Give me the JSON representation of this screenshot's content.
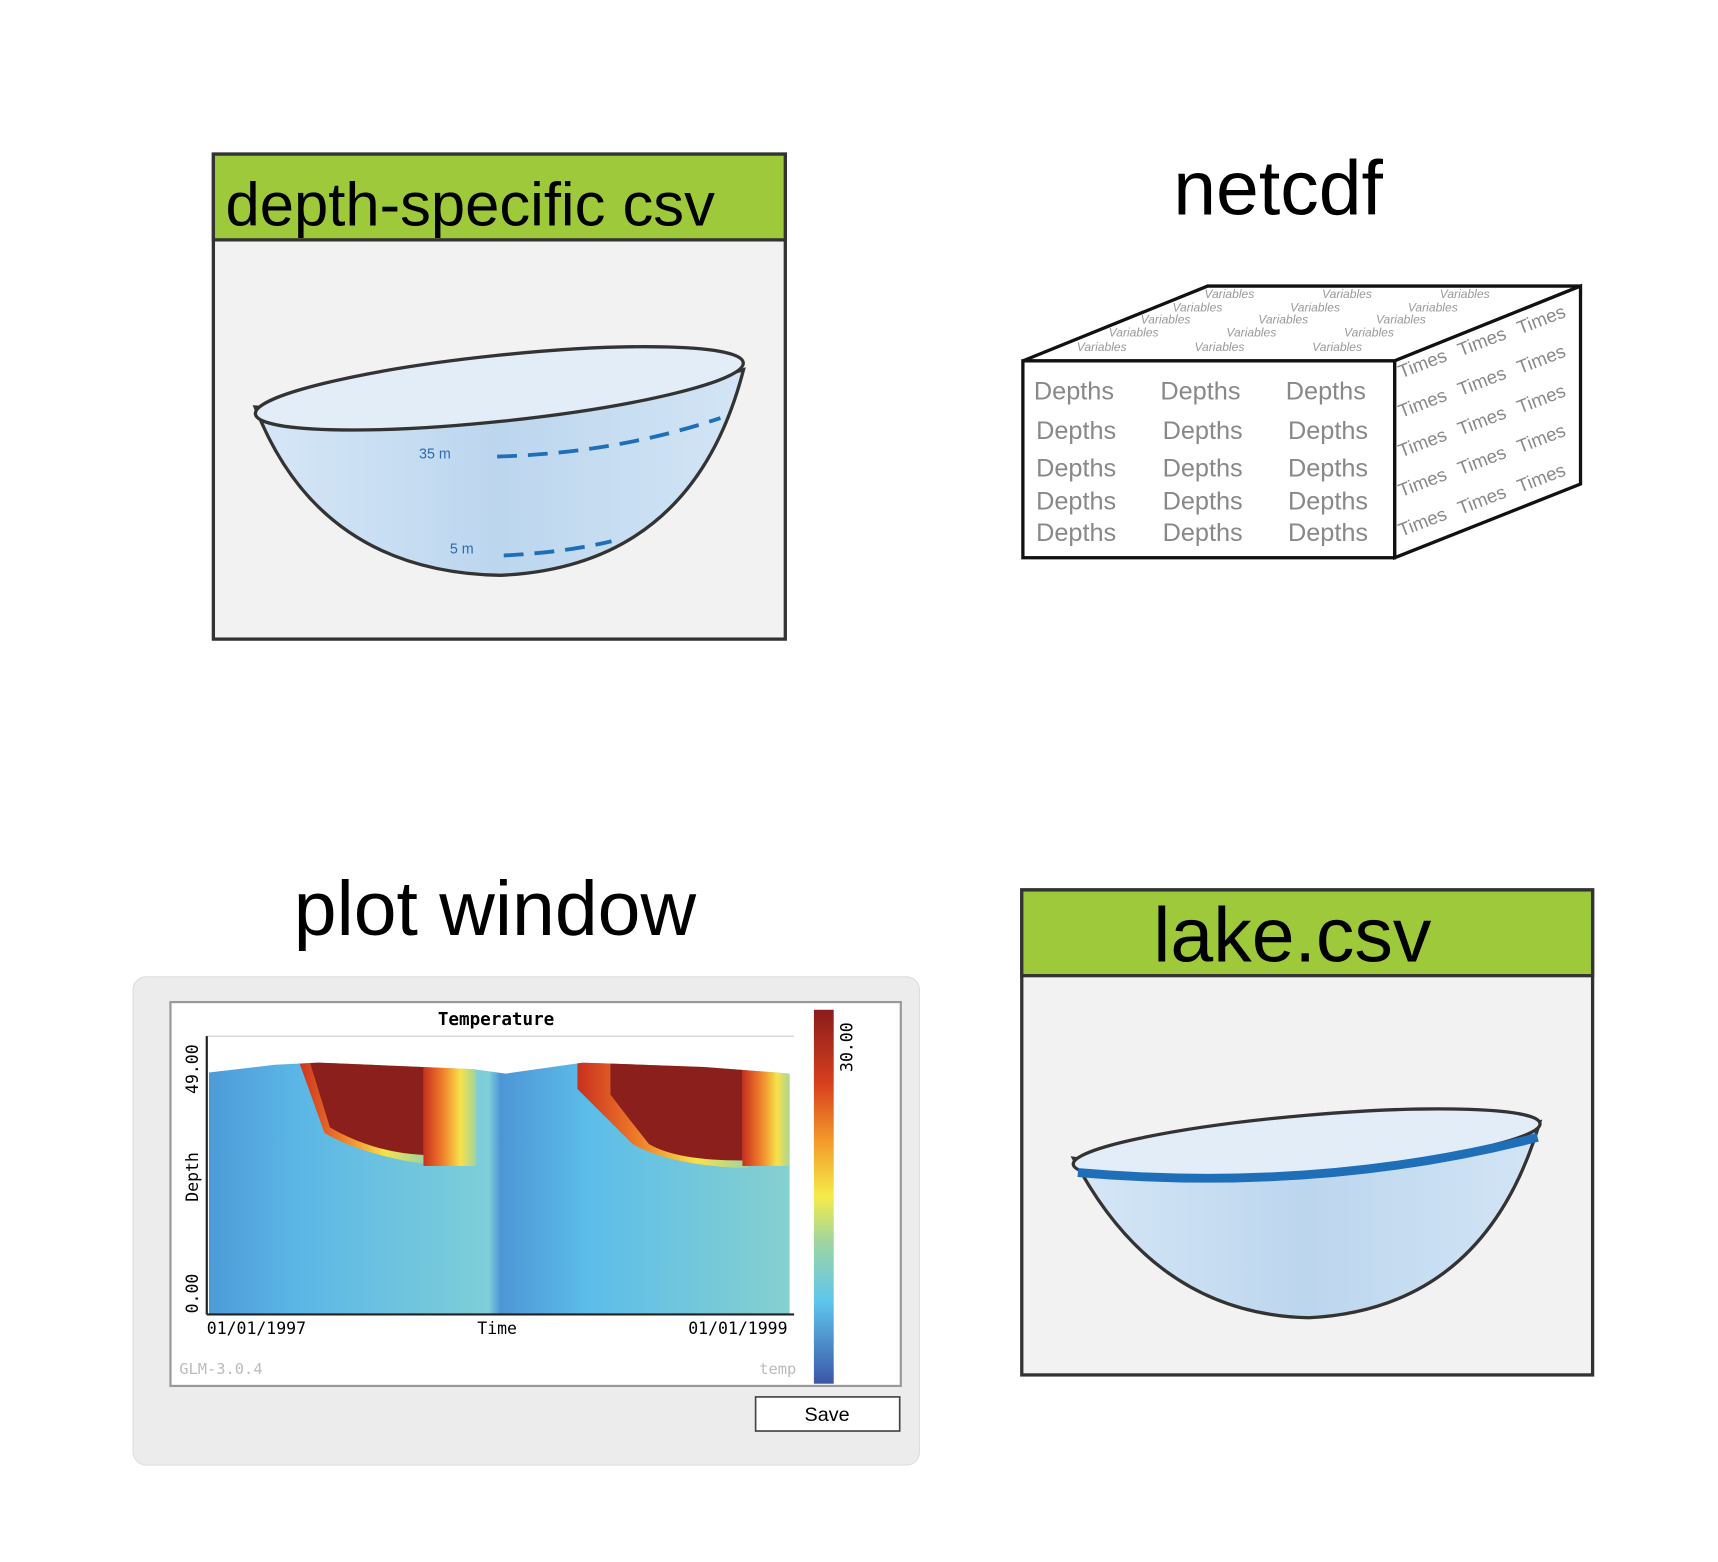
{
  "panels": {
    "depth_csv": {
      "title": "depth-specific csv",
      "labels": [
        "35 m",
        "5 m"
      ]
    },
    "netcdf": {
      "title": "netcdf",
      "front": "Depths",
      "top": "Variables",
      "side": "Times"
    },
    "plot_window": {
      "title": "plot window",
      "plot": {
        "title": "Temperature",
        "y_label": "Depth",
        "y_top": "49.00",
        "y_bottom": "0.00",
        "x_label": "Time",
        "x_start": "01/01/1997",
        "x_end": "01/01/1999",
        "version": "GLM-3.0.4",
        "variable": "temp",
        "colorbar_max": "30.00"
      },
      "button": "Save"
    },
    "lake_csv": {
      "title": "lake.csv"
    }
  }
}
